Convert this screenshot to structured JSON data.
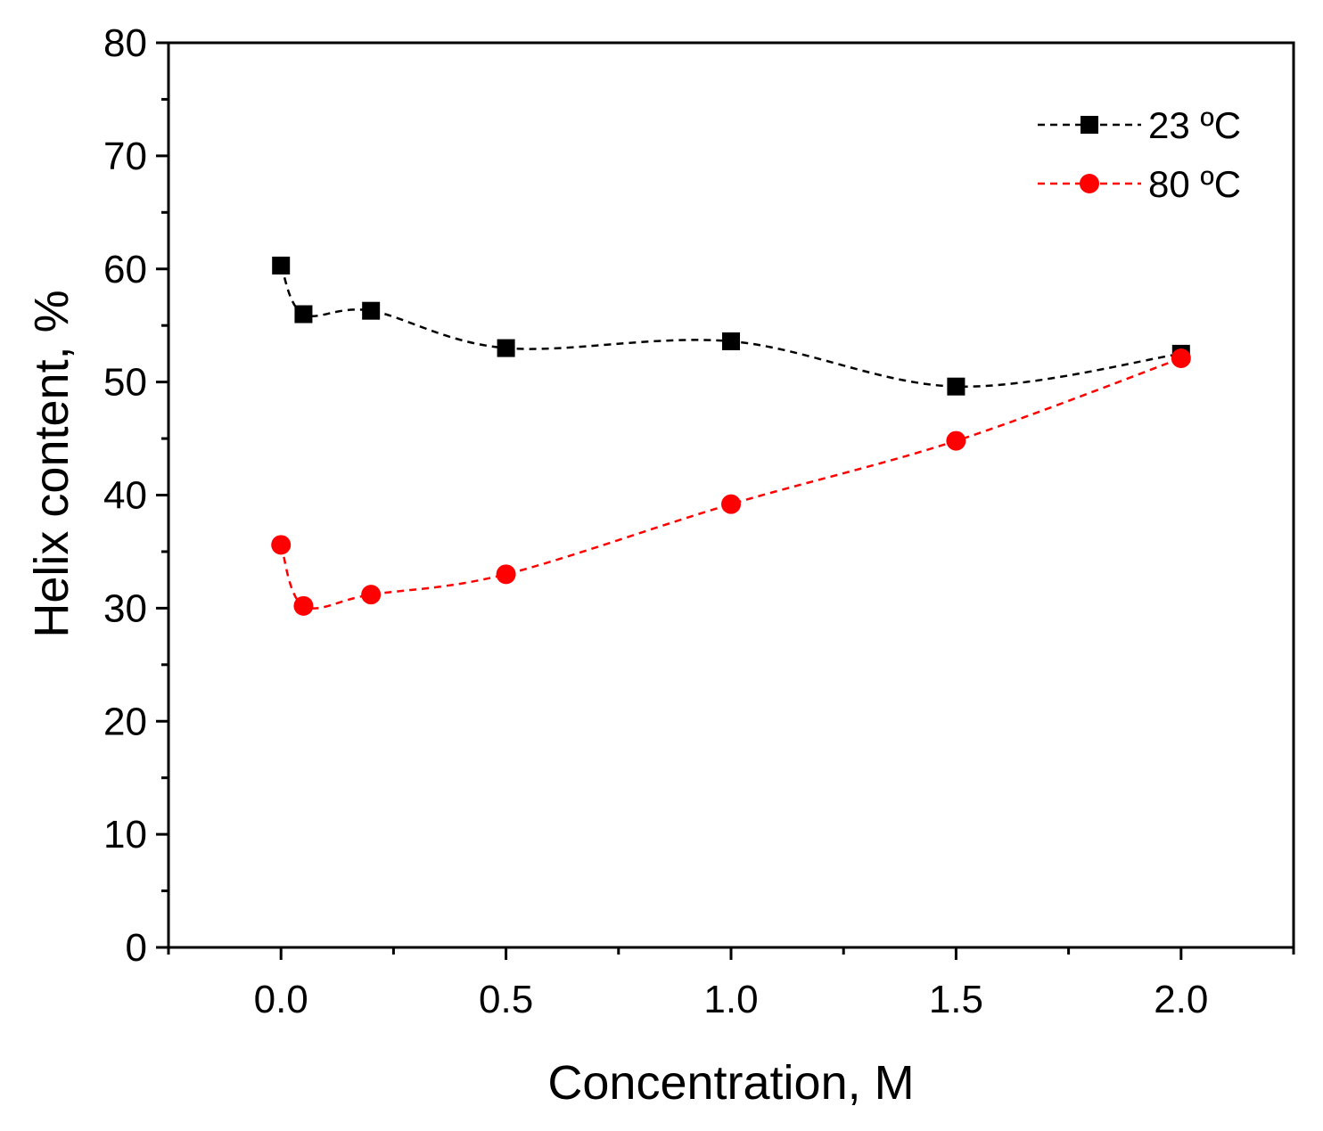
{
  "chart_data": {
    "type": "line",
    "title": "",
    "xlabel": "Concentration, M",
    "ylabel": "Helix content, %",
    "xlim": [
      -0.25,
      2.25
    ],
    "ylim": [
      0,
      80
    ],
    "x_ticks": [
      0.0,
      0.5,
      1.0,
      1.5,
      2.0
    ],
    "x_tick_labels": [
      "0.0",
      "0.5",
      "1.0",
      "1.5",
      "2.0"
    ],
    "y_ticks": [
      0,
      10,
      20,
      30,
      40,
      50,
      60,
      70,
      80
    ],
    "y_tick_labels": [
      "0",
      "10",
      "20",
      "30",
      "40",
      "50",
      "60",
      "70",
      "80"
    ],
    "grid": false,
    "legend_position": "top-right",
    "series": [
      {
        "name": "23 ºC",
        "color": "#000000",
        "marker": "square",
        "line_style": "dashed",
        "x": [
          0.0,
          0.05,
          0.2,
          0.5,
          1.0,
          1.5,
          2.0
        ],
        "y": [
          60.3,
          56.0,
          56.3,
          53.0,
          53.6,
          49.6,
          52.5
        ]
      },
      {
        "name": "80 ºC",
        "color": "#ff0000",
        "marker": "circle",
        "line_style": "dashed",
        "x": [
          0.0,
          0.05,
          0.2,
          0.5,
          1.0,
          1.5,
          2.0
        ],
        "y": [
          35.6,
          30.2,
          31.2,
          33.0,
          39.2,
          44.8,
          52.1
        ]
      }
    ]
  }
}
